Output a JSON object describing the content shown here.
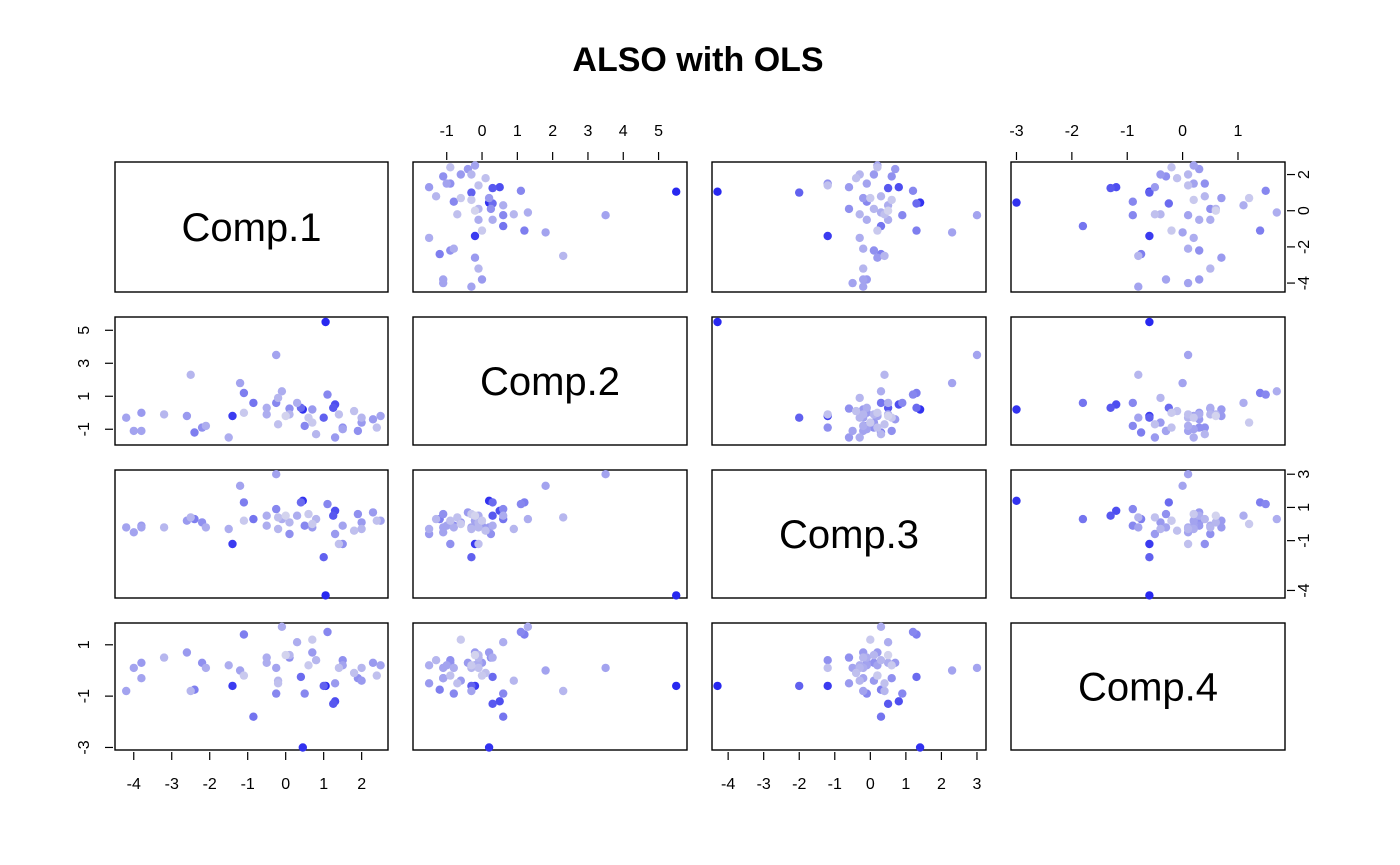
{
  "chart_data": {
    "type": "scatter",
    "title": "ALSO with OLS",
    "variables": [
      "Comp.1",
      "Comp.2",
      "Comp.3",
      "Comp.4"
    ],
    "ranges": [
      [
        -4.35,
        2.55
      ],
      [
        -1.8,
        5.65
      ],
      [
        -4.3,
        3.1
      ],
      [
        -3.0,
        1.75
      ]
    ],
    "axis_ticks": {
      "Comp.1": [
        "-4",
        "-3",
        "-2",
        "-1",
        "0",
        "1",
        "2"
      ],
      "Comp.2": [
        "-1",
        "1",
        "3",
        "5"
      ],
      "Comp.2_top": [
        "-1",
        "0",
        "1",
        "2",
        "3",
        "4",
        "5"
      ],
      "Comp.3": [
        "3",
        "1",
        "-1",
        "-4"
      ],
      "Comp.3_bottom": [
        "-4",
        "-3",
        "-2",
        "-1",
        "0",
        "1",
        "2",
        "3"
      ],
      "Comp.4": [
        "1",
        "-1",
        "-3"
      ],
      "Comp.4_top": [
        "-3",
        "-2",
        "-1",
        "0",
        "1"
      ],
      "Comp.1_right": [
        "2",
        "0",
        "-2",
        "-4"
      ]
    },
    "point_color_light": "#dcdcee",
    "point_color_dark": "#1f1ff0",
    "observations": [
      {
        "c1": 1.05,
        "c2": 5.5,
        "c3": -4.3,
        "c4": -0.6,
        "w": 0.95
      },
      {
        "c1": 0.45,
        "c2": 0.2,
        "c3": 1.4,
        "c4": -3.0,
        "w": 0.9
      },
      {
        "c1": -1.4,
        "c2": -0.2,
        "c3": -1.2,
        "c4": -0.6,
        "w": 0.85
      },
      {
        "c1": 1.3,
        "c2": 0.5,
        "c3": 0.8,
        "c4": -1.2,
        "w": 0.75
      },
      {
        "c1": 1.25,
        "c2": 0.3,
        "c3": 0.5,
        "c4": -1.3,
        "w": 0.7
      },
      {
        "c1": 1.0,
        "c2": -0.3,
        "c3": -2.0,
        "c4": -0.6,
        "w": 0.65
      },
      {
        "c1": 0.4,
        "c2": 0.3,
        "c3": 1.3,
        "c4": -0.25,
        "w": 0.6
      },
      {
        "c1": -0.85,
        "c2": 0.6,
        "c3": 0.3,
        "c4": -1.8,
        "w": 0.55
      },
      {
        "c1": -1.1,
        "c2": 1.2,
        "c3": 1.3,
        "c4": 1.4,
        "w": 0.5
      },
      {
        "c1": -2.4,
        "c2": -1.2,
        "c3": 0.3,
        "c4": -0.75,
        "w": 0.5
      },
      {
        "c1": 1.1,
        "c2": 1.1,
        "c3": 1.2,
        "c4": 1.5,
        "w": 0.45
      },
      {
        "c1": -0.25,
        "c2": 0.6,
        "c3": 0.9,
        "c4": -0.9,
        "w": 0.45
      },
      {
        "c1": 0.5,
        "c2": -0.8,
        "c3": -0.1,
        "c4": -0.9,
        "w": 0.45
      },
      {
        "c1": 1.9,
        "c2": -1.1,
        "c3": 0.6,
        "c4": -0.3,
        "w": 0.4
      },
      {
        "c1": 1.5,
        "c2": -0.9,
        "c3": -1.2,
        "c4": 0.4,
        "w": 0.4
      },
      {
        "c1": 0.1,
        "c2": 0.25,
        "c3": -0.6,
        "c4": 0.5,
        "w": 0.4
      },
      {
        "c1": -2.2,
        "c2": -0.9,
        "c3": 0.1,
        "c4": 0.3,
        "w": 0.4
      },
      {
        "c1": 1.3,
        "c2": -1.5,
        "c3": -0.6,
        "c4": -0.5,
        "w": 0.35
      },
      {
        "c1": 2.3,
        "c2": -0.4,
        "c3": 0.7,
        "c4": 0.3,
        "w": 0.35
      },
      {
        "c1": 2.0,
        "c2": -0.6,
        "c3": 0.1,
        "c4": -0.4,
        "w": 0.35
      },
      {
        "c1": -2.6,
        "c2": -0.2,
        "c3": 0.2,
        "c4": 0.7,
        "w": 0.35
      },
      {
        "c1": -3.8,
        "c2": 0.0,
        "c3": -0.1,
        "c4": 0.3,
        "w": 0.35
      },
      {
        "c1": 0.7,
        "c2": 0.2,
        "c3": -0.2,
        "c4": 0.7,
        "w": 0.35
      },
      {
        "c1": -0.25,
        "c2": 3.5,
        "c3": 3.0,
        "c4": 0.1,
        "w": 0.3
      },
      {
        "c1": -1.2,
        "c2": 1.8,
        "c3": 2.3,
        "c4": 0.0,
        "w": 0.3
      },
      {
        "c1": 2.5,
        "c2": -0.2,
        "c3": 0.2,
        "c4": 0.2,
        "w": 0.3
      },
      {
        "c1": -3.8,
        "c2": -1.1,
        "c3": -0.2,
        "c4": -0.3,
        "w": 0.3
      },
      {
        "c1": -4.2,
        "c2": -0.3,
        "c3": -0.2,
        "c4": -0.8,
        "w": 0.3
      },
      {
        "c1": -4.0,
        "c2": -1.1,
        "c3": -0.5,
        "c4": 0.1,
        "w": 0.3
      },
      {
        "c1": 1.5,
        "c2": -1.0,
        "c3": -0.1,
        "c4": 0.2,
        "w": 0.3
      },
      {
        "c1": -0.1,
        "c2": 1.3,
        "c3": 0.3,
        "c4": 1.7,
        "w": 0.25
      },
      {
        "c1": -0.5,
        "c2": 0.3,
        "c3": -0.1,
        "c4": 0.5,
        "w": 0.25
      },
      {
        "c1": 0.3,
        "c2": 0.6,
        "c3": 0.5,
        "c4": 1.1,
        "w": 0.25
      },
      {
        "c1": -0.5,
        "c2": -0.1,
        "c3": 0.5,
        "c4": 0.3,
        "w": 0.25
      },
      {
        "c1": -1.5,
        "c2": -1.5,
        "c3": -0.3,
        "c4": 0.2,
        "w": 0.25
      },
      {
        "c1": -2.1,
        "c2": -0.8,
        "c3": -0.2,
        "c4": 0.1,
        "w": 0.25
      },
      {
        "c1": 2.0,
        "c2": -0.3,
        "c3": -0.3,
        "c4": 0.1,
        "w": 0.2
      },
      {
        "c1": 0.8,
        "c2": -1.3,
        "c3": 0.3,
        "c4": 0.4,
        "w": 0.2
      },
      {
        "c1": -2.5,
        "c2": 2.3,
        "c3": 0.4,
        "c4": -0.8,
        "w": 0.2
      },
      {
        "c1": -3.2,
        "c2": -0.1,
        "c3": -0.2,
        "c4": 0.5,
        "w": 0.2
      },
      {
        "c1": -0.2,
        "c2": 0.9,
        "c3": -0.3,
        "c4": -0.4,
        "w": 0.2
      },
      {
        "c1": 0.1,
        "c2": -0.1,
        "c3": 0.1,
        "c4": 0.6,
        "w": 0.2
      },
      {
        "c1": 1.4,
        "c2": -0.1,
        "c3": -1.2,
        "c4": 0.1,
        "w": 0.15
      },
      {
        "c1": -0.2,
        "c2": -0.7,
        "c3": 0.4,
        "c4": -0.5,
        "w": 0.15
      },
      {
        "c1": 1.8,
        "c2": 0.1,
        "c3": -0.4,
        "c4": -0.1,
        "w": 0.15
      },
      {
        "c1": 2.4,
        "c2": -0.9,
        "c3": 0.2,
        "c4": -0.2,
        "w": 0.15
      },
      {
        "c1": 0.7,
        "c2": -0.6,
        "c3": 0.0,
        "c4": 1.2,
        "w": 0.1
      },
      {
        "c1": -1.1,
        "c2": 0.0,
        "c3": 0.2,
        "c4": -0.2,
        "w": 0.1
      },
      {
        "c1": 0.6,
        "c2": -0.3,
        "c3": 0.6,
        "c4": 0.2,
        "w": 0.1
      },
      {
        "c1": 0.0,
        "c2": -0.2,
        "c3": 0.5,
        "c4": 0.6,
        "w": 0.05
      }
    ]
  }
}
